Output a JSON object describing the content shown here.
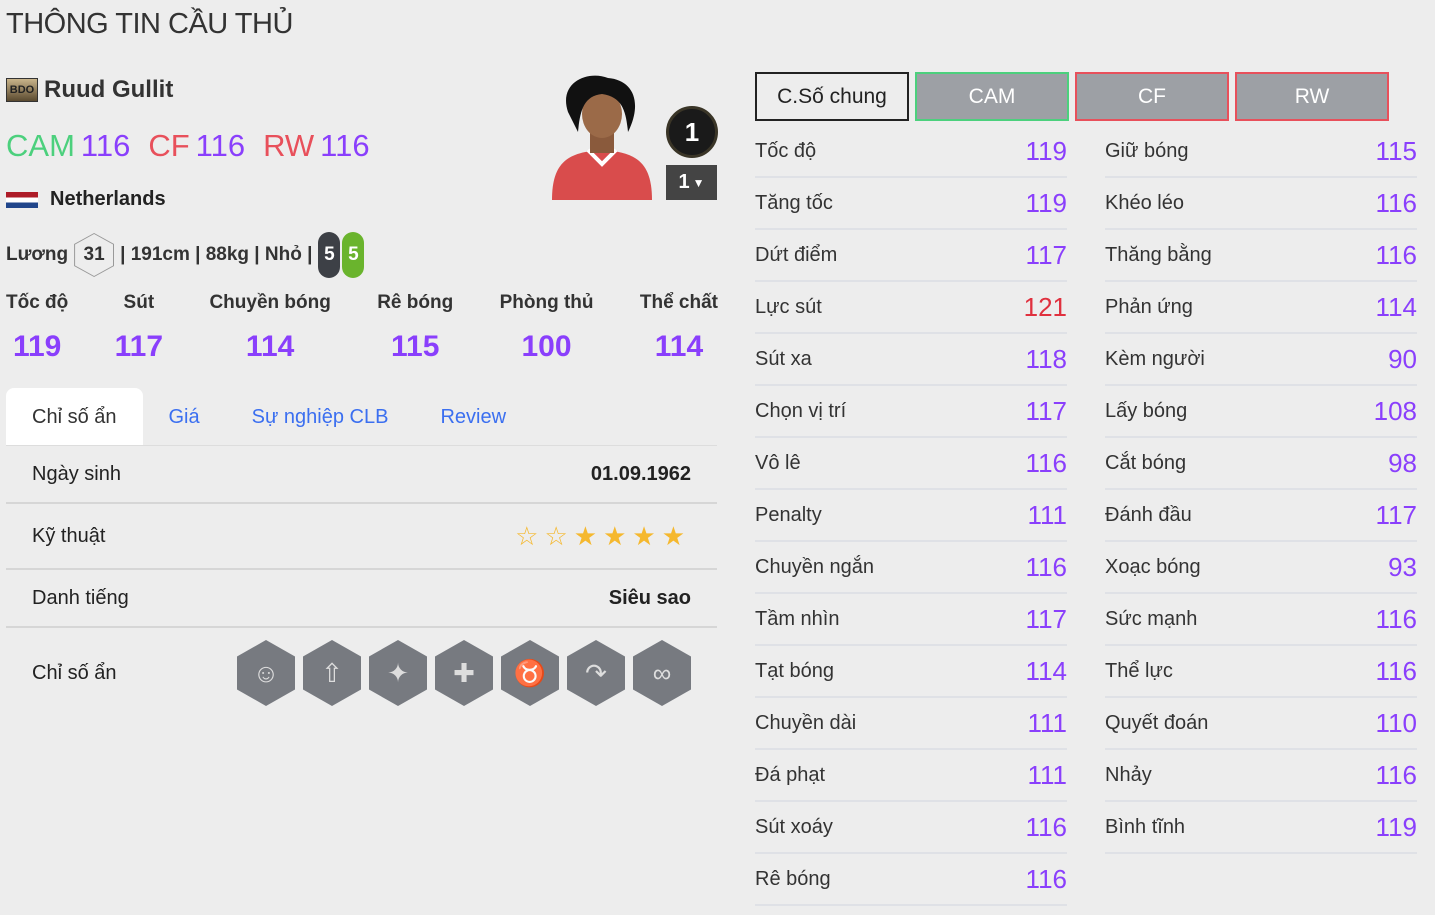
{
  "page_title": "THÔNG TIN CẦU THỦ",
  "player": {
    "season_badge": "BDO",
    "name": "Ruud Gullit",
    "nation": "Netherlands",
    "positions": [
      {
        "pos": "CAM",
        "ovr": "116",
        "color": "#4cd07d"
      },
      {
        "pos": "CF",
        "ovr": "116",
        "color": "#e8505b"
      },
      {
        "pos": "RW",
        "ovr": "116",
        "color": "#e8505b"
      }
    ],
    "salary_label": "Lương",
    "salary": "31",
    "details": "| 191cm | 88kg | Nhỏ |",
    "weak_foot": "5",
    "strong_foot": "5",
    "rank": "1",
    "level": "1"
  },
  "main_stats": [
    {
      "label": "Tốc độ",
      "value": "119"
    },
    {
      "label": "Sút",
      "value": "117"
    },
    {
      "label": "Chuyền bóng",
      "value": "114"
    },
    {
      "label": "Rê bóng",
      "value": "115"
    },
    {
      "label": "Phòng thủ",
      "value": "100"
    },
    {
      "label": "Thể chất",
      "value": "114"
    }
  ],
  "tabs": [
    "Chỉ số ẩn",
    "Giá",
    "Sự nghiệp CLB",
    "Review"
  ],
  "info_rows": {
    "birth_label": "Ngày sinh",
    "birth": "01.09.1962",
    "skill_label": "Kỹ thuật",
    "skill_stars": 4,
    "skill_max": 6,
    "fame_label": "Danh tiếng",
    "fame": "Siêu sao",
    "traits_label": "Chỉ số ẩn"
  },
  "traits": [
    "flair-icon",
    "long-shot-icon",
    "speed-dribbler-icon",
    "power-header-icon",
    "bull-icon",
    "finesse-shot-icon",
    "playmaker-icon"
  ],
  "position_buttons": [
    "C.Số chung",
    "CAM",
    "CF",
    "RW"
  ],
  "colors": {
    "purple": "#8a3ffc",
    "red": "#e0303e",
    "green": "#4cd07d"
  },
  "stats_left": [
    [
      "Tốc độ",
      "119"
    ],
    [
      "Tăng tốc",
      "119"
    ],
    [
      "Dứt điểm",
      "117"
    ],
    [
      "Lực sút",
      "121"
    ],
    [
      "Sút xa",
      "118"
    ],
    [
      "Chọn vị trí",
      "117"
    ],
    [
      "Vô lê",
      "116"
    ],
    [
      "Penalty",
      "111"
    ],
    [
      "Chuyền ngắn",
      "116"
    ],
    [
      "Tầm nhìn",
      "117"
    ],
    [
      "Tạt bóng",
      "114"
    ],
    [
      "Chuyền dài",
      "111"
    ],
    [
      "Đá phạt",
      "111"
    ],
    [
      "Sút xoáy",
      "116"
    ],
    [
      "Rê bóng",
      "116"
    ]
  ],
  "stats_right": [
    [
      "Giữ bóng",
      "115"
    ],
    [
      "Khéo léo",
      "116"
    ],
    [
      "Thăng bằng",
      "116"
    ],
    [
      "Phản ứng",
      "114"
    ],
    [
      "Kèm người",
      "90"
    ],
    [
      "Lấy bóng",
      "108"
    ],
    [
      "Cắt bóng",
      "98"
    ],
    [
      "Đánh đầu",
      "117"
    ],
    [
      "Xoạc bóng",
      "93"
    ],
    [
      "Sức mạnh",
      "116"
    ],
    [
      "Thể lực",
      "116"
    ],
    [
      "Quyết đoán",
      "110"
    ],
    [
      "Nhảy",
      "116"
    ],
    [
      "Bình tĩnh",
      "119"
    ]
  ]
}
